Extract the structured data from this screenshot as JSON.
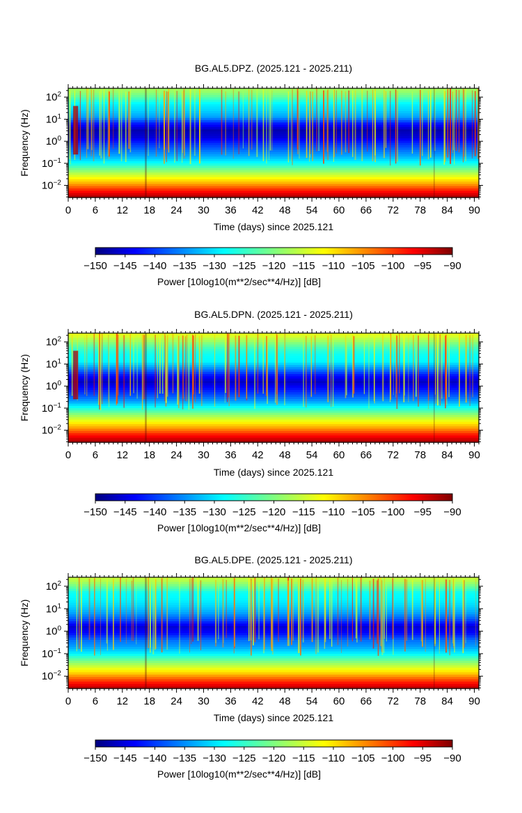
{
  "chart_data": [
    {
      "type": "heatmap",
      "title": "BG.AL5.DPZ. (2025.121 - 2025.211)",
      "xlabel": "Time (days) since 2025.121",
      "ylabel": "Frequency (Hz)",
      "x_ticks": [
        "0",
        "6",
        "12",
        "18",
        "24",
        "30",
        "36",
        "42",
        "48",
        "54",
        "60",
        "66",
        "72",
        "78",
        "84",
        "90"
      ],
      "y_ticks": [
        {
          "base": "10",
          "exp": "2"
        },
        {
          "base": "10",
          "exp": "1"
        },
        {
          "base": "10",
          "exp": "0"
        },
        {
          "base": "10",
          "exp": "−1"
        },
        {
          "base": "10",
          "exp": "−2"
        }
      ],
      "xlim": [
        0,
        91
      ],
      "ylim_log10": [
        -2.55,
        2.4
      ],
      "y_scale": "log",
      "colorbar": {
        "label": "Power [10log10(m**2/sec**4/Hz)] [dB]",
        "ticks": [
          "−150",
          "−145",
          "−140",
          "−135",
          "−130",
          "−125",
          "−120",
          "−115",
          "−110",
          "−105",
          "−100",
          "−95",
          "−90"
        ],
        "range": [
          -150,
          -90
        ]
      },
      "gaps_days": [
        [
          17,
          17.4
        ],
        [
          81,
          81.2
        ]
      ],
      "profile": [
        {
          "log_f": -2.5,
          "db": -93
        },
        {
          "log_f": -2.2,
          "db": -100
        },
        {
          "log_f": -1.9,
          "db": -108
        },
        {
          "log_f": -1.6,
          "db": -114
        },
        {
          "log_f": -1.3,
          "db": -120
        },
        {
          "log_f": -1.0,
          "db": -127
        },
        {
          "log_f": -0.7,
          "db": -132
        },
        {
          "log_f": -0.4,
          "db": -136
        },
        {
          "log_f": -0.1,
          "db": -140
        },
        {
          "log_f": 0.2,
          "db": -145
        },
        {
          "log_f": 0.5,
          "db": -147
        },
        {
          "log_f": 0.8,
          "db": -141
        },
        {
          "log_f": 1.1,
          "db": -133
        },
        {
          "log_f": 1.4,
          "db": -130
        },
        {
          "log_f": 1.7,
          "db": -128
        },
        {
          "log_f": 2.0,
          "db": -122
        },
        {
          "log_f": 2.3,
          "db": -118
        }
      ]
    },
    {
      "type": "heatmap",
      "title": "BG.AL5.DPN. (2025.121 - 2025.211)",
      "xlabel": "Time (days) since 2025.121",
      "ylabel": "Frequency (Hz)",
      "x_ticks": [
        "0",
        "6",
        "12",
        "18",
        "24",
        "30",
        "36",
        "42",
        "48",
        "54",
        "60",
        "66",
        "72",
        "78",
        "84",
        "90"
      ],
      "y_ticks": [
        {
          "base": "10",
          "exp": "2"
        },
        {
          "base": "10",
          "exp": "1"
        },
        {
          "base": "10",
          "exp": "0"
        },
        {
          "base": "10",
          "exp": "−1"
        },
        {
          "base": "10",
          "exp": "−2"
        }
      ],
      "xlim": [
        0,
        91
      ],
      "ylim_log10": [
        -2.55,
        2.4
      ],
      "y_scale": "log",
      "colorbar": {
        "label": "Power [10log10(m**2/sec**4/Hz)] [dB]",
        "ticks": [
          "−150",
          "−145",
          "−140",
          "−135",
          "−130",
          "−125",
          "−120",
          "−115",
          "−110",
          "−105",
          "−100",
          "−95",
          "−90"
        ],
        "range": [
          -150,
          -90
        ]
      },
      "gaps_days": [
        [
          17,
          17.4
        ],
        [
          81,
          81.2
        ]
      ],
      "profile": [
        {
          "log_f": -2.5,
          "db": -93
        },
        {
          "log_f": -2.2,
          "db": -99
        },
        {
          "log_f": -1.9,
          "db": -107
        },
        {
          "log_f": -1.6,
          "db": -113
        },
        {
          "log_f": -1.3,
          "db": -119
        },
        {
          "log_f": -1.0,
          "db": -126
        },
        {
          "log_f": -0.7,
          "db": -133
        },
        {
          "log_f": -0.4,
          "db": -138
        },
        {
          "log_f": -0.1,
          "db": -142
        },
        {
          "log_f": 0.2,
          "db": -146
        },
        {
          "log_f": 0.5,
          "db": -141
        },
        {
          "log_f": 0.8,
          "db": -134
        },
        {
          "log_f": 1.1,
          "db": -128
        },
        {
          "log_f": 1.4,
          "db": -127
        },
        {
          "log_f": 1.7,
          "db": -124
        },
        {
          "log_f": 2.0,
          "db": -119
        },
        {
          "log_f": 2.3,
          "db": -114
        }
      ]
    },
    {
      "type": "heatmap",
      "title": "BG.AL5.DPE. (2025.121 - 2025.211)",
      "xlabel": "Time (days) since 2025.121",
      "ylabel": "Frequency (Hz)",
      "x_ticks": [
        "0",
        "6",
        "12",
        "18",
        "24",
        "30",
        "36",
        "42",
        "48",
        "54",
        "60",
        "66",
        "72",
        "78",
        "84",
        "90"
      ],
      "y_ticks": [
        {
          "base": "10",
          "exp": "2"
        },
        {
          "base": "10",
          "exp": "1"
        },
        {
          "base": "10",
          "exp": "0"
        },
        {
          "base": "10",
          "exp": "−1"
        },
        {
          "base": "10",
          "exp": "−2"
        }
      ],
      "xlim": [
        0,
        91
      ],
      "ylim_log10": [
        -2.55,
        2.4
      ],
      "y_scale": "log",
      "colorbar": {
        "label": "Power [10log10(m**2/sec**4/Hz)] [dB]",
        "ticks": [
          "−150",
          "−145",
          "−140",
          "−135",
          "−130",
          "−125",
          "−120",
          "−115",
          "−110",
          "−105",
          "−100",
          "−95",
          "−90"
        ],
        "range": [
          -150,
          -90
        ]
      },
      "gaps_days": [
        [
          17,
          17.4
        ],
        [
          81,
          81.2
        ]
      ],
      "profile": [
        {
          "log_f": -2.5,
          "db": -94
        },
        {
          "log_f": -2.2,
          "db": -101
        },
        {
          "log_f": -1.9,
          "db": -109
        },
        {
          "log_f": -1.6,
          "db": -115
        },
        {
          "log_f": -1.3,
          "db": -121
        },
        {
          "log_f": -1.0,
          "db": -128
        },
        {
          "log_f": -0.7,
          "db": -133
        },
        {
          "log_f": -0.4,
          "db": -136
        },
        {
          "log_f": -0.1,
          "db": -142
        },
        {
          "log_f": 0.2,
          "db": -145
        },
        {
          "log_f": 0.5,
          "db": -138
        },
        {
          "log_f": 0.8,
          "db": -133
        },
        {
          "log_f": 1.1,
          "db": -130
        },
        {
          "log_f": 1.4,
          "db": -128
        },
        {
          "log_f": 1.7,
          "db": -127
        },
        {
          "log_f": 2.0,
          "db": -121
        },
        {
          "log_f": 2.3,
          "db": -116
        }
      ]
    }
  ]
}
